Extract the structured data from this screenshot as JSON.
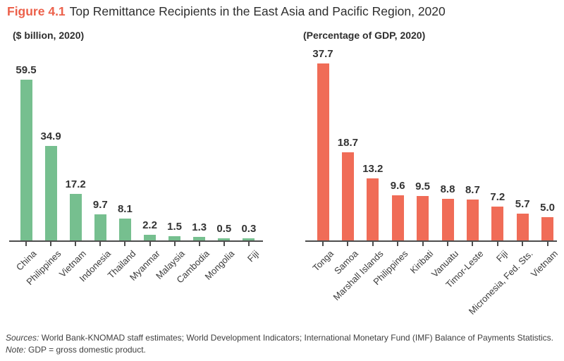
{
  "header": {
    "figure_label": "Figure 4.1",
    "title": "Top Remittance Recipients in the East Asia and Pacific Region, 2020",
    "accent_color": "#ec604a"
  },
  "chart_data": [
    {
      "type": "bar",
      "title": "($ billion, 2020)",
      "categories": [
        "China",
        "Philippines",
        "Vietnam",
        "Indonesia",
        "Thailand",
        "Myanmar",
        "Malaysia",
        "Cambodia",
        "Mongolia",
        "Fiji"
      ],
      "values": [
        59.5,
        34.9,
        17.2,
        9.7,
        8.1,
        2.2,
        1.5,
        1.3,
        0.5,
        0.3
      ],
      "bar_color": "#76bf8f",
      "value_label_decimals": 1,
      "ylim": [
        0,
        62
      ],
      "grid": false,
      "legend": "none",
      "value_labels": true
    },
    {
      "type": "bar",
      "title": "(Percentage of GDP, 2020)",
      "categories": [
        "Tonga",
        "Samoa",
        "Marshall Islands",
        "Philippines",
        "Kiribati",
        "Vanuatu",
        "Timor-Leste",
        "Fiji",
        "Micronesia, Fed. Sts.",
        "Vietnam"
      ],
      "values": [
        37.7,
        18.7,
        13.2,
        9.6,
        9.5,
        8.8,
        8.7,
        7.2,
        5.7,
        5.0
      ],
      "bar_color": "#f06c57",
      "value_label_decimals": 1,
      "ylim": [
        0,
        39
      ],
      "grid": false,
      "legend": "none",
      "value_labels": true
    }
  ],
  "footer": {
    "sources_label": "Sources:",
    "sources_text": "World Bank-KNOMAD staff estimates; World Development Indicators; International Monetary Fund (IMF) Balance of Payments Statistics.",
    "note_label": "Note:",
    "note_text": "GDP = gross domestic product."
  }
}
